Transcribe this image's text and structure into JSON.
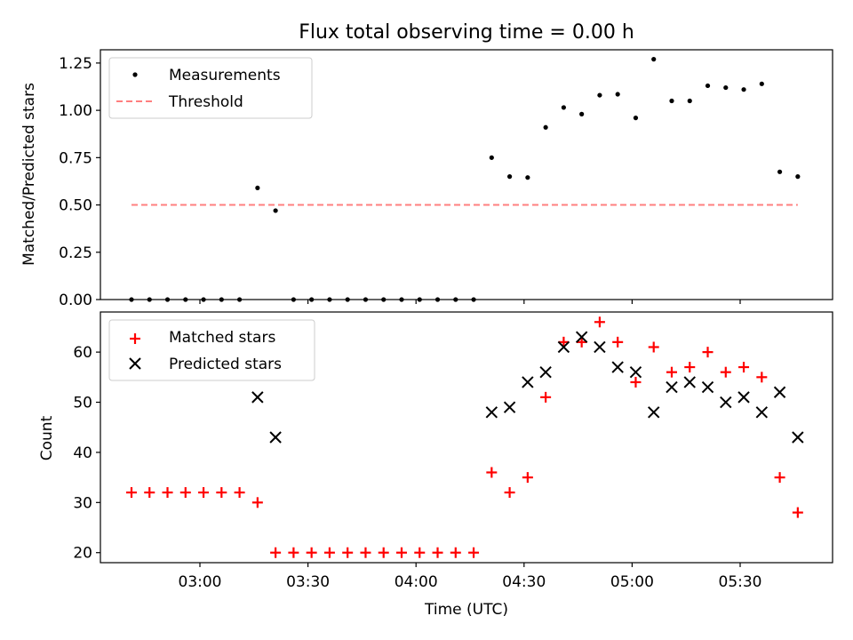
{
  "title": "Flux total observing time = 0.00 h",
  "xlabel": "Time (UTC)",
  "xticks": [
    "03:00",
    "03:30",
    "04:00",
    "04:30",
    "05:00",
    "05:30"
  ],
  "chart_data": [
    {
      "type": "scatter",
      "ylabel": "Matched/Predicted stars",
      "ylim": [
        0,
        1.32
      ],
      "yticks": [
        "0.00",
        "0.25",
        "0.50",
        "0.75",
        "1.00",
        "1.25"
      ],
      "legend_position": "top-left",
      "grid": false,
      "x_times": [
        "02:41",
        "02:46",
        "02:51",
        "02:56",
        "03:01",
        "03:06",
        "03:11",
        "03:16",
        "03:21",
        "03:26",
        "03:31",
        "03:36",
        "03:41",
        "03:46",
        "03:51",
        "03:56",
        "04:01",
        "04:06",
        "04:11",
        "04:16",
        "04:21",
        "04:26",
        "04:31",
        "04:36",
        "04:41",
        "04:46",
        "04:51",
        "04:56",
        "05:01",
        "05:06",
        "05:11",
        "05:16",
        "05:21",
        "05:26",
        "05:31",
        "05:36",
        "05:41",
        "05:46"
      ],
      "series": [
        {
          "name": "Measurements",
          "marker": "dot",
          "color": "#000000",
          "values": [
            0,
            0,
            0,
            0,
            0,
            0,
            0,
            0.59,
            0.47,
            0,
            0,
            0,
            0,
            0,
            0,
            0,
            0,
            0,
            0,
            0,
            0.75,
            0.65,
            0.645,
            0.91,
            1.015,
            0.98,
            1.08,
            1.085,
            0.96,
            1.27,
            1.05,
            1.05,
            1.13,
            1.12,
            1.11,
            1.14,
            0.675,
            0.65
          ]
        },
        {
          "name": "Threshold",
          "marker": "dashed-line",
          "color": "#ff7f7f",
          "x_range": [
            "02:41",
            "05:46"
          ],
          "value": 0.5
        }
      ]
    },
    {
      "type": "scatter",
      "ylabel": "Count",
      "ylim": [
        18,
        68
      ],
      "yticks": [
        "20",
        "30",
        "40",
        "50",
        "60"
      ],
      "legend_position": "top-left",
      "grid": false,
      "x_times": [
        "02:41",
        "02:46",
        "02:51",
        "02:56",
        "03:01",
        "03:06",
        "03:11",
        "03:16",
        "03:21",
        "03:26",
        "03:31",
        "03:36",
        "03:41",
        "03:46",
        "03:51",
        "03:56",
        "04:01",
        "04:06",
        "04:11",
        "04:16",
        "04:21",
        "04:26",
        "04:31",
        "04:36",
        "04:41",
        "04:46",
        "04:51",
        "04:56",
        "05:01",
        "05:06",
        "05:11",
        "05:16",
        "05:21",
        "05:26",
        "05:31",
        "05:36",
        "05:41",
        "05:46"
      ],
      "series": [
        {
          "name": "Matched stars",
          "marker": "plus",
          "color": "#ff0000",
          "values": [
            32,
            32,
            32,
            32,
            32,
            32,
            32,
            30,
            20,
            20,
            20,
            20,
            20,
            20,
            20,
            20,
            20,
            20,
            20,
            20,
            36,
            32,
            35,
            51,
            62,
            62,
            66,
            62,
            54,
            61,
            56,
            57,
            60,
            56,
            57,
            55,
            35,
            28
          ]
        },
        {
          "name": "Predicted stars",
          "marker": "x",
          "color": "#000000",
          "values": [
            null,
            null,
            null,
            null,
            null,
            null,
            null,
            51,
            43,
            null,
            null,
            null,
            null,
            null,
            null,
            null,
            null,
            null,
            null,
            null,
            48,
            49,
            54,
            56,
            61,
            63,
            61,
            57,
            56,
            48,
            53,
            54,
            53,
            50,
            51,
            48,
            52,
            43
          ]
        }
      ]
    }
  ]
}
